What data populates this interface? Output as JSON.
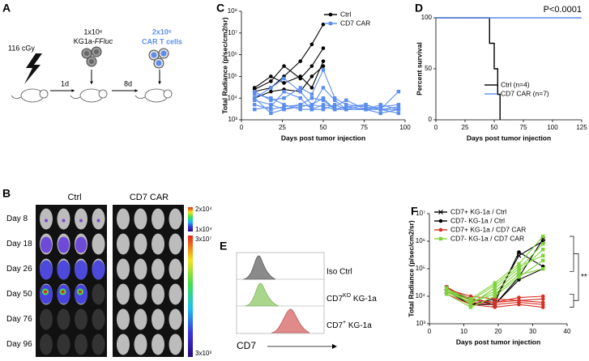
{
  "panel_labels": [
    "A",
    "B",
    "C",
    "D",
    "E",
    "F"
  ],
  "panel_a": {
    "dose": "116 cGy",
    "tumor_dose": "1x10⁶",
    "tumor_line": "KG1a-",
    "tumor_reporter": "FFluc",
    "car_dose": "2x10⁶",
    "car_cells": "CAR T cells",
    "interval_1": "1d",
    "interval_2": "8d"
  },
  "panel_b": {
    "groups": [
      "Ctrl",
      "CD7 CAR"
    ],
    "days": [
      "Day 8",
      "Day 18",
      "Day 26",
      "Day 50",
      "Day 76",
      "Day 96"
    ],
    "scale_small": [
      "2x10⁴",
      "1x10⁴"
    ],
    "scale_large": [
      "3x10⁷",
      "3x10³"
    ]
  },
  "panel_e": {
    "samples": [
      {
        "text": "Iso Ctrl"
      },
      {
        "base": "CD7",
        "sup": "KO",
        "rest": " KG-1a"
      },
      {
        "base": "CD7",
        "sup": "+",
        "rest": " KG-1a"
      }
    ],
    "axis_label": "CD7"
  },
  "chart_data": [
    {
      "type": "line",
      "x_label": "Days post tumor injection",
      "y_label": "Total Radiance (p/sec/cm2/sr)",
      "x": [
        8,
        18,
        26,
        36,
        43,
        50,
        57,
        64,
        76,
        85,
        96
      ],
      "xlim": [
        0,
        100
      ],
      "xticks": [
        0,
        25,
        50,
        75,
        100
      ],
      "log_y": true,
      "ylim": [
        1000,
        100000000
      ],
      "yticks": [
        {
          "value": 1000,
          "label": "10³"
        },
        {
          "value": 10000,
          "label": "10⁴"
        },
        {
          "value": 100000,
          "label": "10⁵"
        },
        {
          "value": 1000000,
          "label": "10⁶"
        },
        {
          "value": 10000000,
          "label": "10⁷"
        },
        {
          "value": 100000000,
          "label": "10⁸"
        }
      ],
      "legend": "upper right",
      "series": [
        {
          "name": "Ctrl",
          "color": "#000000",
          "marker": "circle",
          "values": [
            [
              20000,
              30000,
              100000,
              500000,
              3000000,
              25000000,
              null,
              null,
              null,
              null,
              null
            ],
            [
              25000,
              60000,
              300000,
              80000,
              300000,
              2000000,
              null,
              null,
              null,
              null,
              null
            ],
            [
              10000,
              20000,
              25000,
              20000,
              100000,
              300000,
              null,
              null,
              null,
              null,
              null
            ],
            [
              30000,
              100000,
              50000,
              100000,
              30000,
              500000,
              null,
              null,
              null,
              null,
              null
            ]
          ]
        },
        {
          "name": "CD7 CAR",
          "color": "#5b8def",
          "marker": "square",
          "values": [
            [
              20000,
              8000,
              10000,
              30000,
              15000,
              200000,
              10000,
              5000,
              4000,
              3000,
              20000
            ],
            [
              10000,
              30000,
              80000,
              20000,
              5000,
              10000,
              3000,
              4000,
              5000,
              3000,
              3000
            ],
            [
              8000,
              5000,
              3000,
              5000,
              4000,
              30000,
              8000,
              3000,
              3000,
              4000,
              5000
            ],
            [
              15000,
              10000,
              5000,
              3000,
              3000,
              5000,
              4000,
              8000,
              3000,
              2000,
              3000
            ],
            [
              5000,
              3000,
              4000,
              5000,
              10000,
              8000,
              3000,
              3000,
              5000,
              3000,
              4000
            ],
            [
              3000,
              4000,
              20000,
              10000,
              3000,
              3000,
              5000,
              3000,
              3000,
              5000,
              3000
            ],
            [
              10000,
              2000,
              3000,
              4000,
              5000,
              4000,
              3000,
              4000,
              3000,
              3000,
              2000
            ]
          ]
        }
      ]
    },
    {
      "type": "step",
      "x_label": "Days post tumor injection",
      "y_label": "Percent survival",
      "annotation": "P<0.0001",
      "xlim": [
        0,
        125
      ],
      "xticks": [
        0,
        25,
        50,
        75,
        100,
        125
      ],
      "ylim": [
        0,
        100
      ],
      "yticks": [
        0,
        50,
        100
      ],
      "legend": "center right",
      "series": [
        {
          "name": "Ctrl (n=4)",
          "color": "#000000",
          "x": [
            0,
            46,
            50,
            53,
            55
          ],
          "values": [
            100,
            75,
            50,
            25,
            0
          ]
        },
        {
          "name": "CD7 CAR (n=7)",
          "color": "#5b8def",
          "x": [
            0,
            125
          ],
          "values": [
            100,
            100
          ]
        }
      ]
    },
    {
      "type": "line",
      "x_label": "Days post tumor injection",
      "y_label": "Total Radiance (p/sec/cm2/sr)",
      "annotation": "**",
      "x": [
        5,
        12,
        19,
        26,
        33
      ],
      "xlim": [
        0,
        40
      ],
      "xticks": [
        0,
        10,
        20,
        30,
        40
      ],
      "log_y": true,
      "ylim": [
        1000,
        10000000
      ],
      "yticks": [
        {
          "value": 1000,
          "label": "10³"
        },
        {
          "value": 10000,
          "label": "10⁴"
        },
        {
          "value": 100000,
          "label": "10⁵"
        },
        {
          "value": 1000000,
          "label": "10⁶"
        },
        {
          "value": 10000000,
          "label": "10⁷"
        }
      ],
      "legend": "upper left",
      "series": [
        {
          "name": "CD7+ KG-1a / Ctrl",
          "color": "#000000",
          "marker": "cross",
          "values": [
            [
              20000,
              8000,
              5000,
              50000,
              1200000
            ],
            [
              15000,
              5000,
              8000,
              300000,
              1000000
            ]
          ]
        },
        {
          "name": "CD7- KG-1a / Ctrl",
          "color": "#000000",
          "marker": "circle",
          "values": [
            [
              20000,
              5000,
              5000,
              40000,
              100000
            ],
            [
              15000,
              8000,
              6000,
              400000,
              120000
            ]
          ]
        },
        {
          "name": "CD7+ KG-1a / CD7 CAR",
          "color": "#d93025",
          "marker": "circle",
          "values": [
            [
              20000,
              8000,
              6000,
              7000,
              6000
            ],
            [
              15000,
              6000,
              5000,
              6000,
              5000
            ],
            [
              18000,
              10000,
              8000,
              7000,
              8000
            ],
            [
              12000,
              5000,
              4000,
              5000,
              4000
            ],
            [
              22000,
              7000,
              6000,
              9000,
              10000
            ]
          ]
        },
        {
          "name": "CD7- KG-1a / CD7 CAR",
          "color": "#7fd33a",
          "marker": "square",
          "values": [
            [
              20000,
              5000,
              20000,
              100000,
              800000
            ],
            [
              15000,
              6000,
              15000,
              80000,
              500000
            ],
            [
              18000,
              8000,
              30000,
              150000,
              1500000
            ],
            [
              12000,
              4000,
              10000,
              50000,
              200000
            ],
            [
              16000,
              7000,
              25000,
              120000,
              300000
            ],
            [
              14000,
              6000,
              12000,
              60000,
              100000
            ]
          ]
        }
      ]
    }
  ]
}
